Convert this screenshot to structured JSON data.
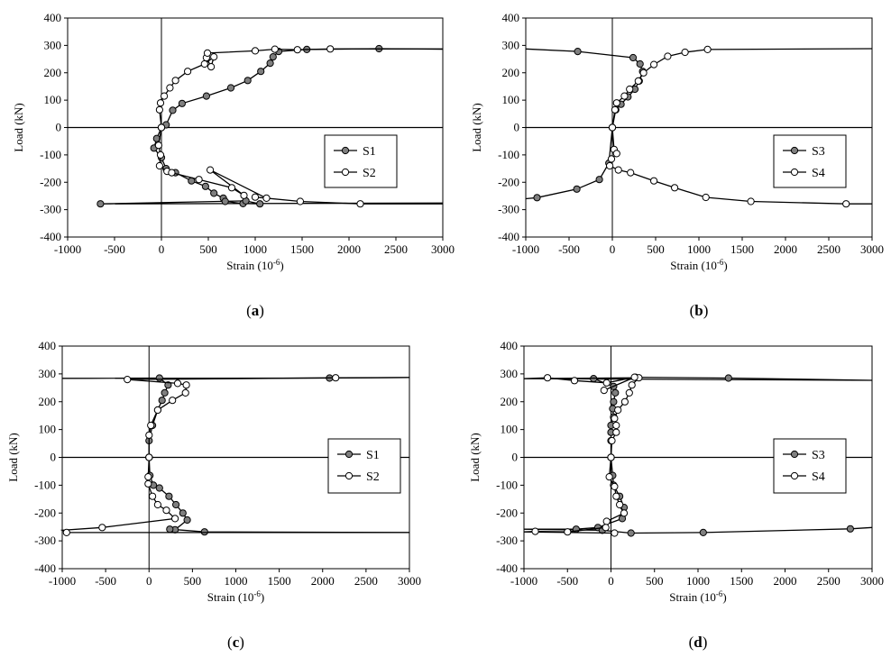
{
  "chart_data": [
    {
      "panel": "(a)",
      "panel_letter": "a",
      "type": "line",
      "xlabel": "Strain (10",
      "xlabel_sup": "-6",
      "xlabel_end": ")",
      "ylabel": "Load (kN)",
      "xlim": [
        -1000,
        3000
      ],
      "ylim": [
        -400,
        400
      ],
      "xticks": [
        "-1000",
        "-500",
        "0",
        "500",
        "1000",
        "1500",
        "2000",
        "2500",
        "3000"
      ],
      "yticks": [
        "400",
        "300",
        "200",
        "100",
        "0",
        "-100",
        "-200",
        "-300",
        "-400"
      ],
      "legend": [
        "S1",
        "S2"
      ],
      "series": [
        {
          "name": "S1",
          "marker": "filled",
          "points": [
            [
              0,
              0
            ],
            [
              50,
              10
            ],
            [
              120,
              63
            ],
            [
              220,
              88
            ],
            [
              480,
              115
            ],
            [
              740,
              145
            ],
            [
              920,
              172
            ],
            [
              1060,
              205
            ],
            [
              1160,
              235
            ],
            [
              1190,
              258
            ],
            [
              1250,
              278
            ],
            [
              1550,
              285
            ],
            [
              2320,
              288
            ],
            [
              3000,
              286
            ],
            null,
            [
              0,
              0
            ],
            [
              -50,
              -40
            ],
            [
              -80,
              -75
            ],
            [
              0,
              -110
            ],
            [
              50,
              -150
            ],
            [
              150,
              -165
            ],
            [
              320,
              -195
            ],
            [
              470,
              -215
            ],
            [
              560,
              -240
            ],
            [
              660,
              -258
            ],
            [
              680,
              -270
            ],
            [
              870,
              -278
            ],
            [
              1050,
              -279
            ],
            [
              900,
              -268
            ],
            [
              -650,
              -279
            ],
            [
              3000,
              -276
            ]
          ]
        },
        {
          "name": "S2",
          "marker": "open",
          "points": [
            [
              0,
              0
            ],
            [
              -20,
              65
            ],
            [
              -10,
              90
            ],
            [
              30,
              115
            ],
            [
              90,
              145
            ],
            [
              150,
              172
            ],
            [
              280,
              205
            ],
            [
              460,
              232
            ],
            [
              560,
              258
            ],
            [
              530,
              222
            ],
            [
              480,
              255
            ],
            [
              490,
              272
            ],
            [
              1000,
              280
            ],
            [
              1210,
              286
            ],
            [
              1450,
              284
            ],
            [
              1800,
              287
            ],
            [
              3000,
              287
            ],
            null,
            [
              0,
              0
            ],
            [
              -30,
              -65
            ],
            [
              -10,
              -100
            ],
            [
              -20,
              -140
            ],
            [
              60,
              -160
            ],
            [
              110,
              -165
            ],
            [
              400,
              -190
            ],
            [
              750,
              -220
            ],
            [
              880,
              -248
            ],
            [
              520,
              -155
            ],
            [
              1120,
              -258
            ],
            [
              1000,
              -254
            ],
            [
              1480,
              -270
            ],
            [
              2120,
              -279
            ],
            [
              3000,
              -279
            ]
          ]
        }
      ]
    },
    {
      "panel": "(b)",
      "panel_letter": "b",
      "type": "line",
      "xlabel": "Strain (10",
      "xlabel_sup": "-6",
      "xlabel_end": ")",
      "ylabel": "Load (kN)",
      "xlim": [
        -1000,
        3000
      ],
      "ylim": [
        -400,
        400
      ],
      "xticks": [
        "-1000",
        "-500",
        "0",
        "500",
        "1000",
        "1500",
        "2000",
        "2500",
        "3000"
      ],
      "yticks": [
        "400",
        "300",
        "200",
        "100",
        "0",
        "-100",
        "-200",
        "-300",
        "-400"
      ],
      "legend": [
        "S3",
        "S4"
      ],
      "series": [
        {
          "name": "S3",
          "marker": "filled",
          "points": [
            [
              0,
              0
            ],
            [
              40,
              65
            ],
            [
              100,
              85
            ],
            [
              180,
              112
            ],
            [
              260,
              140
            ],
            [
              310,
              170
            ],
            [
              350,
              205
            ],
            [
              320,
              232
            ],
            [
              240,
              255
            ],
            [
              -400,
              278
            ],
            [
              -1000,
              287
            ],
            null,
            [
              0,
              0
            ],
            [
              -40,
              -130
            ],
            [
              -150,
              -190
            ],
            [
              -410,
              -225
            ],
            [
              -870,
              -256
            ],
            [
              -1000,
              -260
            ]
          ]
        },
        {
          "name": "S4",
          "marker": "open",
          "points": [
            [
              0,
              0
            ],
            [
              30,
              65
            ],
            [
              50,
              90
            ],
            [
              140,
              115
            ],
            [
              200,
              140
            ],
            [
              300,
              170
            ],
            [
              360,
              200
            ],
            [
              480,
              230
            ],
            [
              640,
              260
            ],
            [
              840,
              275
            ],
            [
              1100,
              285
            ],
            [
              3000,
              288
            ],
            null,
            [
              0,
              0
            ],
            [
              20,
              -80
            ],
            [
              50,
              -95
            ],
            [
              -10,
              -115
            ],
            [
              -30,
              -140
            ],
            [
              70,
              -155
            ],
            [
              210,
              -165
            ],
            [
              480,
              -195
            ],
            [
              720,
              -220
            ],
            [
              1080,
              -255
            ],
            [
              1600,
              -270
            ],
            [
              2700,
              -279
            ],
            [
              3000,
              -279
            ]
          ]
        }
      ]
    },
    {
      "panel": "(c)",
      "panel_letter": "c",
      "type": "line",
      "xlabel": "Strain (10",
      "xlabel_sup": "-6",
      "xlabel_end": ")",
      "ylabel": "Load (kN)",
      "xlim": [
        -1000,
        3000
      ],
      "ylim": [
        -400,
        400
      ],
      "xticks": [
        "-1000",
        "-500",
        "0",
        "500",
        "1000",
        "1500",
        "2000",
        "2500",
        "3000"
      ],
      "yticks": [
        "400",
        "300",
        "200",
        "100",
        "0",
        "-100",
        "-200",
        "-300",
        "-400"
      ],
      "legend": [
        "S1",
        "S2"
      ],
      "series": [
        {
          "name": "S1",
          "marker": "filled",
          "points": [
            [
              0,
              0
            ],
            [
              0,
              60
            ],
            [
              40,
              115
            ],
            [
              100,
              170
            ],
            [
              150,
              205
            ],
            [
              180,
              232
            ],
            [
              220,
              260
            ],
            [
              120,
              285
            ],
            [
              -1000,
              284
            ],
            [
              2080,
              285
            ],
            [
              3000,
              287
            ],
            null,
            [
              0,
              0
            ],
            [
              10,
              -65
            ],
            [
              50,
              -100
            ],
            [
              120,
              -110
            ],
            [
              230,
              -140
            ],
            [
              310,
              -170
            ],
            [
              390,
              -200
            ],
            [
              440,
              -225
            ],
            [
              300,
              -260
            ],
            [
              240,
              -258
            ],
            [
              640,
              -268
            ],
            [
              3000,
              -270
            ]
          ]
        },
        {
          "name": "S2",
          "marker": "open",
          "points": [
            [
              0,
              0
            ],
            [
              0,
              80
            ],
            [
              20,
              115
            ],
            [
              100,
              170
            ],
            [
              270,
              205
            ],
            [
              420,
              232
            ],
            [
              430,
              260
            ],
            [
              330,
              266
            ],
            [
              -250,
              280
            ],
            [
              2150,
              286
            ],
            [
              3000,
              287
            ],
            null,
            [
              0,
              0
            ],
            [
              -10,
              -70
            ],
            [
              -10,
              -95
            ],
            [
              40,
              -140
            ],
            [
              100,
              -170
            ],
            [
              200,
              -190
            ],
            [
              300,
              -220
            ],
            [
              -540,
              -252
            ],
            [
              -1000,
              -262
            ],
            [
              -950,
              -270
            ],
            [
              3000,
              -270
            ]
          ]
        }
      ]
    },
    {
      "panel": "(d)",
      "panel_letter": "d",
      "type": "line",
      "xlabel": "Strain (10",
      "xlabel_sup": "-6",
      "xlabel_end": ")",
      "ylabel": "Load (kN)",
      "xlim": [
        -1000,
        3000
      ],
      "ylim": [
        -400,
        400
      ],
      "xticks": [
        "-1000",
        "-500",
        "0",
        "500",
        "1000",
        "1500",
        "2000",
        "2500",
        "3000"
      ],
      "yticks": [
        "400",
        "300",
        "200",
        "100",
        "0",
        "-100",
        "-200",
        "-300",
        "-400"
      ],
      "legend": [
        "S3",
        "S4"
      ],
      "series": [
        {
          "name": "S3",
          "marker": "filled",
          "points": [
            [
              0,
              0
            ],
            [
              0,
              60
            ],
            [
              0,
              90
            ],
            [
              0,
              115
            ],
            [
              30,
              145
            ],
            [
              20,
              175
            ],
            [
              30,
              200
            ],
            [
              50,
              232
            ],
            [
              30,
              255
            ],
            [
              -200,
              283
            ],
            [
              -1000,
              283
            ],
            [
              3000,
              277
            ],
            [
              1350,
              285
            ],
            [
              280,
              288
            ],
            null,
            [
              0,
              0
            ],
            [
              20,
              -65
            ],
            [
              30,
              -100
            ],
            [
              100,
              -140
            ],
            [
              150,
              -180
            ],
            [
              130,
              -220
            ],
            [
              -150,
              -252
            ],
            [
              -400,
              -258
            ],
            [
              -1000,
              -258
            ],
            [
              -100,
              -262
            ],
            [
              230,
              -272
            ],
            [
              1060,
              -270
            ],
            [
              2750,
              -257
            ],
            [
              3000,
              -252
            ]
          ]
        },
        {
          "name": "S4",
          "marker": "open",
          "points": [
            [
              0,
              0
            ],
            [
              10,
              60
            ],
            [
              60,
              90
            ],
            [
              60,
              115
            ],
            [
              40,
              140
            ],
            [
              80,
              170
            ],
            [
              160,
              200
            ],
            [
              210,
              232
            ],
            [
              240,
              260
            ],
            [
              320,
              286
            ],
            [
              -1000,
              283
            ],
            [
              -730,
              286
            ],
            [
              -420,
              276
            ],
            [
              -50,
              268
            ],
            [
              270,
              288
            ],
            [
              -80,
              241
            ],
            null,
            [
              0,
              0
            ],
            [
              -20,
              -70
            ],
            [
              40,
              -105
            ],
            [
              60,
              -140
            ],
            [
              100,
              -170
            ],
            [
              150,
              -200
            ],
            [
              -50,
              -230
            ],
            [
              -60,
              -252
            ],
            [
              -500,
              -268
            ],
            [
              -870,
              -266
            ],
            [
              -1000,
              -268
            ],
            [
              40,
              -272
            ]
          ]
        }
      ]
    }
  ]
}
